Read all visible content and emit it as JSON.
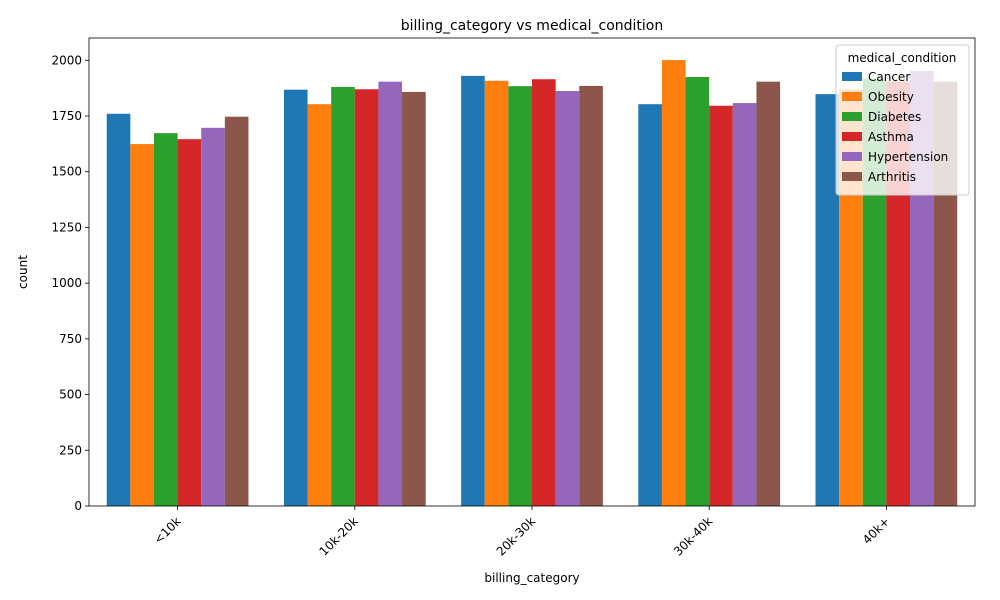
{
  "chart_data": {
    "type": "bar",
    "title": "billing_category vs medical_condition",
    "xlabel": "billing_category",
    "ylabel": "count",
    "categories": [
      "<10k",
      "10k-20k",
      "20k-30k",
      "30k-40k",
      "40k+"
    ],
    "ylim": [
      0,
      2100
    ],
    "yticks": [
      0,
      250,
      500,
      750,
      1000,
      1250,
      1500,
      1750,
      2000
    ],
    "grid": false,
    "legend": {
      "title": "medical_condition",
      "placement": "top-right"
    },
    "series": [
      {
        "name": "Cancer",
        "color": "#1f77b4",
        "values": [
          1760,
          1868,
          1930,
          1803,
          1848
        ]
      },
      {
        "name": "Obesity",
        "color": "#ff7f0e",
        "values": [
          1624,
          1803,
          1908,
          2001,
          1870
        ]
      },
      {
        "name": "Diabetes",
        "color": "#2ca02c",
        "values": [
          1673,
          1880,
          1884,
          1925,
          1918
        ]
      },
      {
        "name": "Asthma",
        "color": "#d62728",
        "values": [
          1646,
          1870,
          1915,
          1796,
          1905
        ]
      },
      {
        "name": "Hypertension",
        "color": "#9467bd",
        "values": [
          1697,
          1904,
          1862,
          1808,
          1952
        ]
      },
      {
        "name": "Arthritis",
        "color": "#8c564b",
        "values": [
          1747,
          1858,
          1885,
          1904,
          1904
        ]
      }
    ]
  }
}
